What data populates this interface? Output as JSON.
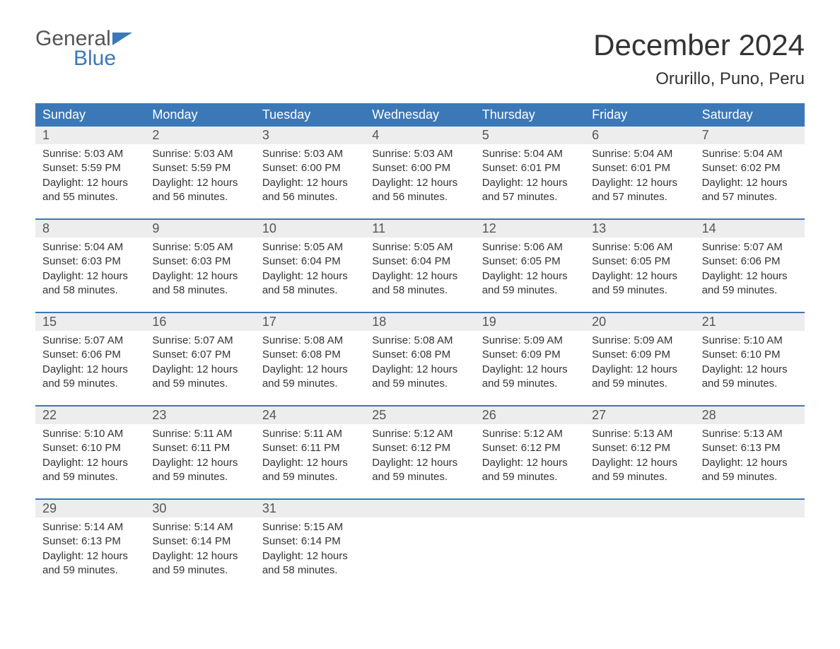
{
  "brand": {
    "top": "General",
    "bottom": "Blue"
  },
  "title": "December 2024",
  "location": "Orurillo, Puno, Peru",
  "colors": {
    "header_bg": "#3b78b8",
    "header_text": "#ffffff",
    "daynum_bg": "#ededed",
    "daynum_text": "#555555",
    "body_text": "#333333",
    "week_divider": "#3b78b8",
    "page_bg": "#ffffff"
  },
  "day_names": [
    "Sunday",
    "Monday",
    "Tuesday",
    "Wednesday",
    "Thursday",
    "Friday",
    "Saturday"
  ],
  "weeks": [
    [
      {
        "n": "1",
        "sr": "Sunrise: 5:03 AM",
        "ss": "Sunset: 5:59 PM",
        "d1": "Daylight: 12 hours",
        "d2": "and 55 minutes."
      },
      {
        "n": "2",
        "sr": "Sunrise: 5:03 AM",
        "ss": "Sunset: 5:59 PM",
        "d1": "Daylight: 12 hours",
        "d2": "and 56 minutes."
      },
      {
        "n": "3",
        "sr": "Sunrise: 5:03 AM",
        "ss": "Sunset: 6:00 PM",
        "d1": "Daylight: 12 hours",
        "d2": "and 56 minutes."
      },
      {
        "n": "4",
        "sr": "Sunrise: 5:03 AM",
        "ss": "Sunset: 6:00 PM",
        "d1": "Daylight: 12 hours",
        "d2": "and 56 minutes."
      },
      {
        "n": "5",
        "sr": "Sunrise: 5:04 AM",
        "ss": "Sunset: 6:01 PM",
        "d1": "Daylight: 12 hours",
        "d2": "and 57 minutes."
      },
      {
        "n": "6",
        "sr": "Sunrise: 5:04 AM",
        "ss": "Sunset: 6:01 PM",
        "d1": "Daylight: 12 hours",
        "d2": "and 57 minutes."
      },
      {
        "n": "7",
        "sr": "Sunrise: 5:04 AM",
        "ss": "Sunset: 6:02 PM",
        "d1": "Daylight: 12 hours",
        "d2": "and 57 minutes."
      }
    ],
    [
      {
        "n": "8",
        "sr": "Sunrise: 5:04 AM",
        "ss": "Sunset: 6:03 PM",
        "d1": "Daylight: 12 hours",
        "d2": "and 58 minutes."
      },
      {
        "n": "9",
        "sr": "Sunrise: 5:05 AM",
        "ss": "Sunset: 6:03 PM",
        "d1": "Daylight: 12 hours",
        "d2": "and 58 minutes."
      },
      {
        "n": "10",
        "sr": "Sunrise: 5:05 AM",
        "ss": "Sunset: 6:04 PM",
        "d1": "Daylight: 12 hours",
        "d2": "and 58 minutes."
      },
      {
        "n": "11",
        "sr": "Sunrise: 5:05 AM",
        "ss": "Sunset: 6:04 PM",
        "d1": "Daylight: 12 hours",
        "d2": "and 58 minutes."
      },
      {
        "n": "12",
        "sr": "Sunrise: 5:06 AM",
        "ss": "Sunset: 6:05 PM",
        "d1": "Daylight: 12 hours",
        "d2": "and 59 minutes."
      },
      {
        "n": "13",
        "sr": "Sunrise: 5:06 AM",
        "ss": "Sunset: 6:05 PM",
        "d1": "Daylight: 12 hours",
        "d2": "and 59 minutes."
      },
      {
        "n": "14",
        "sr": "Sunrise: 5:07 AM",
        "ss": "Sunset: 6:06 PM",
        "d1": "Daylight: 12 hours",
        "d2": "and 59 minutes."
      }
    ],
    [
      {
        "n": "15",
        "sr": "Sunrise: 5:07 AM",
        "ss": "Sunset: 6:06 PM",
        "d1": "Daylight: 12 hours",
        "d2": "and 59 minutes."
      },
      {
        "n": "16",
        "sr": "Sunrise: 5:07 AM",
        "ss": "Sunset: 6:07 PM",
        "d1": "Daylight: 12 hours",
        "d2": "and 59 minutes."
      },
      {
        "n": "17",
        "sr": "Sunrise: 5:08 AM",
        "ss": "Sunset: 6:08 PM",
        "d1": "Daylight: 12 hours",
        "d2": "and 59 minutes."
      },
      {
        "n": "18",
        "sr": "Sunrise: 5:08 AM",
        "ss": "Sunset: 6:08 PM",
        "d1": "Daylight: 12 hours",
        "d2": "and 59 minutes."
      },
      {
        "n": "19",
        "sr": "Sunrise: 5:09 AM",
        "ss": "Sunset: 6:09 PM",
        "d1": "Daylight: 12 hours",
        "d2": "and 59 minutes."
      },
      {
        "n": "20",
        "sr": "Sunrise: 5:09 AM",
        "ss": "Sunset: 6:09 PM",
        "d1": "Daylight: 12 hours",
        "d2": "and 59 minutes."
      },
      {
        "n": "21",
        "sr": "Sunrise: 5:10 AM",
        "ss": "Sunset: 6:10 PM",
        "d1": "Daylight: 12 hours",
        "d2": "and 59 minutes."
      }
    ],
    [
      {
        "n": "22",
        "sr": "Sunrise: 5:10 AM",
        "ss": "Sunset: 6:10 PM",
        "d1": "Daylight: 12 hours",
        "d2": "and 59 minutes."
      },
      {
        "n": "23",
        "sr": "Sunrise: 5:11 AM",
        "ss": "Sunset: 6:11 PM",
        "d1": "Daylight: 12 hours",
        "d2": "and 59 minutes."
      },
      {
        "n": "24",
        "sr": "Sunrise: 5:11 AM",
        "ss": "Sunset: 6:11 PM",
        "d1": "Daylight: 12 hours",
        "d2": "and 59 minutes."
      },
      {
        "n": "25",
        "sr": "Sunrise: 5:12 AM",
        "ss": "Sunset: 6:12 PM",
        "d1": "Daylight: 12 hours",
        "d2": "and 59 minutes."
      },
      {
        "n": "26",
        "sr": "Sunrise: 5:12 AM",
        "ss": "Sunset: 6:12 PM",
        "d1": "Daylight: 12 hours",
        "d2": "and 59 minutes."
      },
      {
        "n": "27",
        "sr": "Sunrise: 5:13 AM",
        "ss": "Sunset: 6:12 PM",
        "d1": "Daylight: 12 hours",
        "d2": "and 59 minutes."
      },
      {
        "n": "28",
        "sr": "Sunrise: 5:13 AM",
        "ss": "Sunset: 6:13 PM",
        "d1": "Daylight: 12 hours",
        "d2": "and 59 minutes."
      }
    ],
    [
      {
        "n": "29",
        "sr": "Sunrise: 5:14 AM",
        "ss": "Sunset: 6:13 PM",
        "d1": "Daylight: 12 hours",
        "d2": "and 59 minutes."
      },
      {
        "n": "30",
        "sr": "Sunrise: 5:14 AM",
        "ss": "Sunset: 6:14 PM",
        "d1": "Daylight: 12 hours",
        "d2": "and 59 minutes."
      },
      {
        "n": "31",
        "sr": "Sunrise: 5:15 AM",
        "ss": "Sunset: 6:14 PM",
        "d1": "Daylight: 12 hours",
        "d2": "and 58 minutes."
      },
      null,
      null,
      null,
      null
    ]
  ]
}
